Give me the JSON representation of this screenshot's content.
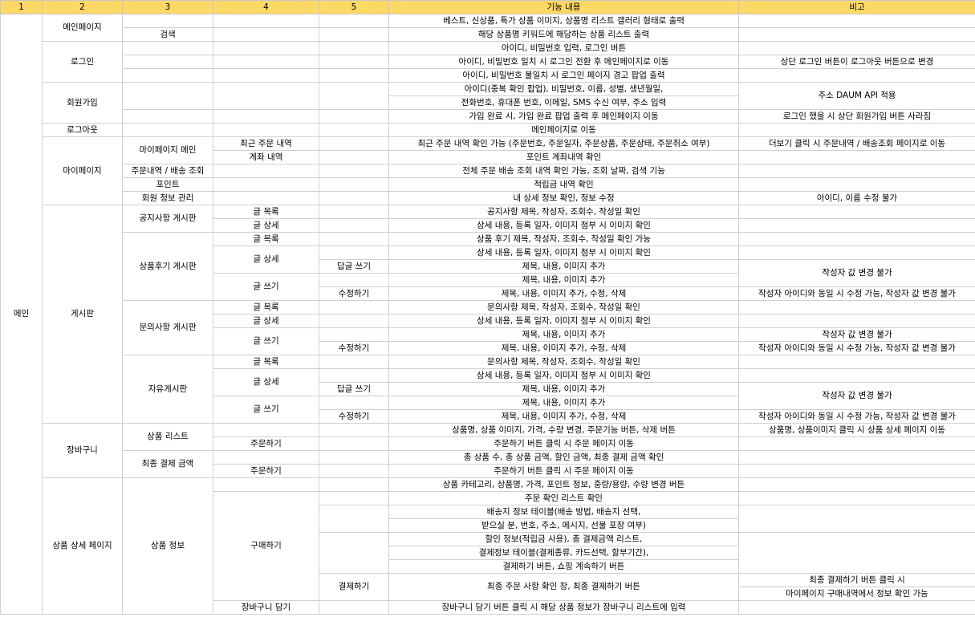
{
  "header": {
    "c1": "1",
    "c2": "2",
    "c3": "3",
    "c4": "4",
    "c5": "5",
    "content": "기능 내용",
    "note": "비고"
  },
  "labels": {
    "main": "메인",
    "mainpage": "메인페이지",
    "search": "검색",
    "login": "로그인",
    "signup": "회원가입",
    "logout": "로그아웃",
    "mypage": "마이페이지",
    "mypage_main": "마이페이지 메인",
    "recent_orders": "최근 주문 내역",
    "account_history": "계좌 내역",
    "order_delivery": "주문내역 / 배송 조회",
    "point": "포인트",
    "member_info": "회원 정보 관리",
    "board": "게시판",
    "notice_board": "공지사항 게시판",
    "review_board": "상품후기 게시판",
    "inquiry_board": "문의사항 게시판",
    "free_board": "자유게시판",
    "post_list": "글 목록",
    "post_detail": "글 상세",
    "post_write": "글 쓰기",
    "reply_write": "답글 쓰기",
    "edit": "수정하기",
    "cart": "장바구니",
    "product_list": "상품 리스트",
    "order_btn": "주문하기",
    "final_amount": "최종 결제 금액",
    "product_detail": "상품 상세 페이지",
    "product_info": "상품 정보",
    "purchase": "구매하기",
    "pay": "결제하기",
    "add_cart": "장바구니 담기"
  },
  "content": {
    "r1": "베스트, 신상품, 특가 상품 이미지, 상품명 리스트 갤러리 형태로 출력",
    "r2": "해당 상품명 키워드에 해당하는 상품 리스트 출력",
    "r3": "아이디, 비밀번호 입력, 로그인 버튼",
    "r4": "아이디, 비밀번호 일치 시 로그인 전환 후 메인페이지로 이동",
    "r5": "아이디, 비밀번호 불일치 시 로그인 페이지 경고 팝업 출력",
    "r6a": "아이디(중복 확인 팝업), 비밀번호, 이름, 성별, 생년월일,",
    "r6b": "전화번호, 휴대폰 번호, 이메일, SMS 수신 여부, 주소 입력",
    "r7": "가입 완료 시, 가입 완료 팝업 출력 후 메인페이지 이동",
    "r8": "메인페이지로 이동",
    "r9": "최근 주문 내역 확인 가능 (주문번호, 주문일자, 주문상품, 주문상태, 주문취소 여부)",
    "r10": "포인트 계좌내역 확인",
    "r11": "전체 주문 배송 조회 내역 확인 가능, 조회 날짜, 검색 기능",
    "r12": "적립금 내역 확인",
    "r13": "내 상세 정보 확인, 정보 수정",
    "r14": "공지사항 제목, 작성자, 조회수, 작성일 확인",
    "r15": "상세 내용, 등록 일자, 이미지 첨부 시 이미지 확인",
    "r16": "상품 후기 제목, 작성자, 조회수, 작성일 확인 가능",
    "r17": "상세 내용, 등록 일자, 이미지 첨부 시 이미지 확인",
    "r18": "제목, 내용, 이미지 추가",
    "r19": "제목, 내용, 이미지 추가",
    "r20": "제목, 내용, 이미지 추가, 수정, 삭제",
    "r21": "문의사항 제목, 작성자, 조회수, 작성일 확인",
    "r22": "상세 내용, 등록 일자, 이미지 첨부 시 이미지 확인",
    "r23": "제목, 내용, 이미지 추가",
    "r24": "제목, 내용, 이미지 추가, 수정, 삭제",
    "r25": "문의사항 제목, 작성자, 조회수, 작성일 확인",
    "r26": "상세 내용, 등록 일자, 이미지 첨부 시 이미지 확인",
    "r27": "제목, 내용, 이미지 추가",
    "r28": "제목, 내용, 이미지 추가",
    "r29": "제목, 내용, 이미지 추가, 수정, 삭제",
    "r30": "상품명, 상품 이미지, 가격, 수량 변경, 주문기능 버튼, 삭제 버튼",
    "r31": "주문하기 버튼 클릭 시 주문 페이지 이동",
    "r32": "총 상품 수, 총 상품 금액, 할인 금액, 최종 결제 금액 확인",
    "r33": "주문하기 버튼 클릭 시 주문 페이지 이동",
    "r34": "상품 카테고리, 상품명, 가격, 포인트 정보, 중량/용량, 수량 변경 버튼",
    "r35": "주문 확인 리스트 확인",
    "r36a": "배송지 정보 테이블(배송 방법, 배송지 선택,",
    "r36b": "받으실 분, 번호, 주소, 메시지, 선물 포장 여부)",
    "r37a": "할인 정보(적립금 사용), 총 결제금액 리스트,",
    "r37b": "결제정보 테이블(결제종류, 카드선택, 할부기간),",
    "r37c": "결제하기 버튼, 쇼핑 계속하기 버튼",
    "r38": "최종 주문 사항 확인 창, 최종 결제하기 버튼",
    "r39": "장바구니 담기 버튼 클릭 시 해당 상품 정보가 장바구니 리스트에 입력"
  },
  "notes": {
    "login": "상단 로그인 버튼이 로그아웃 버튼으로 변경",
    "signup_addr": "주소 DAUM API 적용",
    "signup_done": "로그인 했을 시 상단 회원가입 버튼 사라짐",
    "recent": "더보기 클릭 시 주문내역 / 배송조회 페이지로 이동",
    "member": "아이디, 이름 수정 불가",
    "no_edit_writer": "작성자 값 변경 불가",
    "edit_same_id": "작성자 아이디와 동일 시 수정 가능, 작성자 값 변경 불가",
    "cart_list": "상품명, 상품이미지 클릭 시 상품 상세 페이지 이동",
    "pay_a": "최종 결제하기 버튼 클릭 시",
    "pay_b": "마이페이지 구매내역에서 정보 확인 가능"
  }
}
